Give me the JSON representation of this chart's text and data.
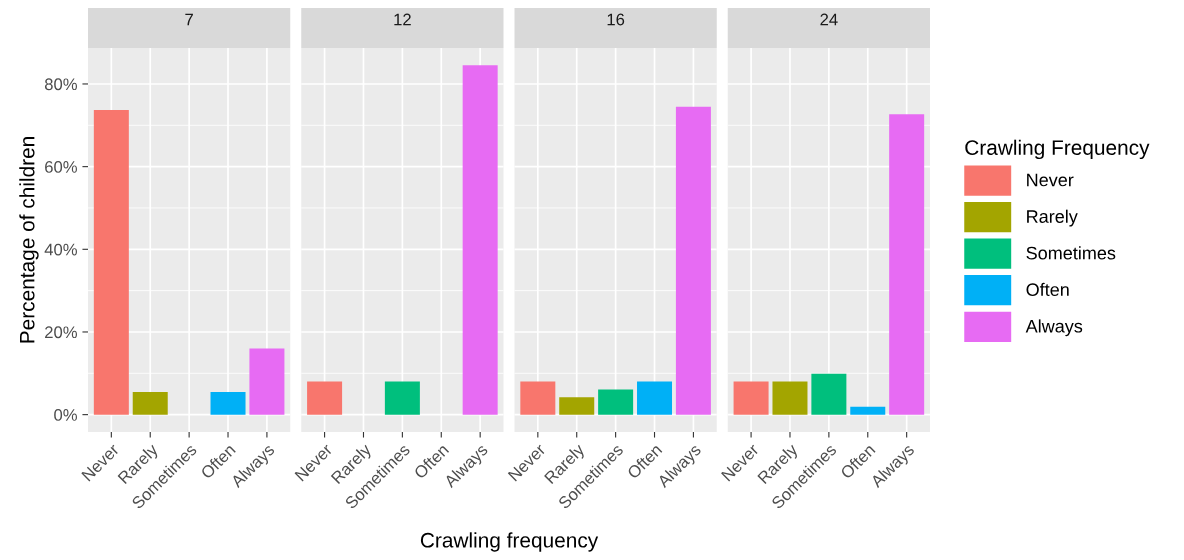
{
  "chart_data": [
    {
      "type": "bar",
      "title": "7",
      "ylabel": "Percentage of children",
      "categories": [
        "Never",
        "Rarely",
        "Sometimes",
        "Often",
        "Always"
      ],
      "series": [
        {
          "color": "#f8766d",
          "values": [
            73.7,
            null,
            null,
            null,
            null
          ]
        },
        {
          "color": "#a3a500",
          "values": [
            null,
            5.5,
            null,
            null,
            null
          ]
        },
        {
          "color": "#00b0f6",
          "values": [
            null,
            null,
            null,
            5.5,
            null
          ]
        },
        {
          "color": "#e76bf3",
          "values": [
            null,
            null,
            null,
            null,
            16.0
          ]
        }
      ],
      "ylim": [
        -4.2,
        88.7
      ],
      "yticks": [
        {
          "value": 0,
          "label": "0%"
        },
        {
          "value": 20,
          "label": "20%"
        },
        {
          "value": 40,
          "label": "40%"
        },
        {
          "value": 60,
          "label": "60%"
        },
        {
          "value": 80,
          "label": "80%"
        }
      ],
      "grid": true
    },
    {
      "type": "bar",
      "title": "12",
      "xlabel": "Crawling frequency",
      "categories": [
        "Never",
        "Rarely",
        "Sometimes",
        "Often",
        "Always"
      ],
      "series": [
        {
          "color": "#f8766d",
          "values": [
            8.0,
            null,
            null,
            null,
            null
          ]
        },
        {
          "color": "#00bf7d",
          "values": [
            null,
            null,
            8.0,
            null,
            null
          ]
        },
        {
          "color": "#e76bf3",
          "values": [
            null,
            null,
            null,
            null,
            84.5
          ]
        }
      ],
      "ylim": [
        -4.2,
        88.7
      ],
      "yticks": [
        0,
        20,
        40,
        60,
        80
      ],
      "grid": true,
      "tick_labels": "x"
    },
    {
      "type": "bar",
      "title": "16",
      "categories": [
        "Never",
        "Rarely",
        "Sometimes",
        "Often",
        "Always"
      ],
      "series": [
        {
          "color": "#f8766d",
          "values": [
            8.0,
            null,
            null,
            null,
            null
          ]
        },
        {
          "color": "#a3a500",
          "values": [
            null,
            4.2,
            null,
            null,
            null
          ]
        },
        {
          "color": "#00bf7d",
          "values": [
            null,
            null,
            6.1,
            null,
            null
          ]
        },
        {
          "color": "#00b0f6",
          "values": [
            null,
            null,
            null,
            8.0,
            null
          ]
        },
        {
          "color": "#e76bf3",
          "values": [
            null,
            null,
            null,
            null,
            74.5
          ]
        }
      ],
      "ylim": [
        -4.2,
        88.7
      ],
      "yticks": [
        0,
        20,
        40,
        60,
        80
      ],
      "grid": true,
      "tick_labels": "x"
    },
    {
      "type": "bar",
      "title": "24",
      "legend_title": "Crawling Frequency",
      "legend": "right",
      "categories": [
        "Never",
        "Rarely",
        "Sometimes",
        "Often",
        "Always"
      ],
      "series": [
        {
          "name": "Never",
          "color": "#f8766d",
          "values": [
            8.0,
            null,
            null,
            null,
            null
          ]
        },
        {
          "name": "Rarely",
          "color": "#a3a500",
          "values": [
            null,
            8.0,
            null,
            null,
            null
          ]
        },
        {
          "name": "Sometimes",
          "color": "#00bf7d",
          "values": [
            null,
            null,
            9.9,
            null,
            null
          ]
        },
        {
          "name": "Often",
          "color": "#00b0f6",
          "values": [
            null,
            null,
            null,
            1.9,
            null
          ]
        },
        {
          "name": "Always",
          "color": "#e76bf3",
          "values": [
            null,
            null,
            null,
            null,
            72.7
          ]
        }
      ],
      "ylim": [
        -4.2,
        88.7
      ],
      "yticks": [
        0,
        20,
        40,
        60,
        80
      ],
      "grid": true,
      "tick_labels": "x"
    }
  ]
}
